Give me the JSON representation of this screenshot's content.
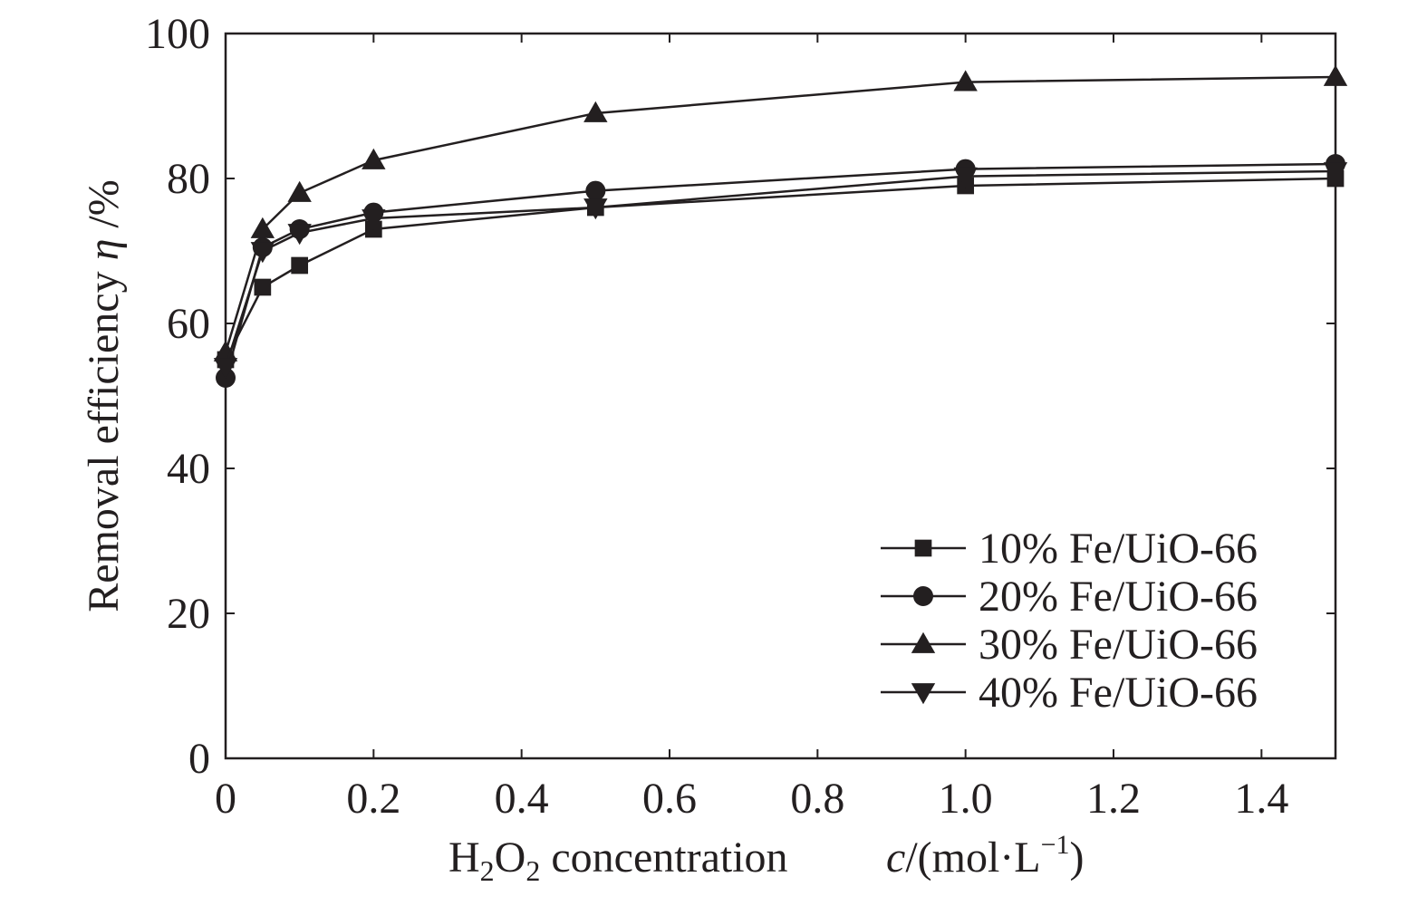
{
  "chart_data": {
    "type": "line",
    "x": [
      0,
      0.05,
      0.1,
      0.2,
      0.5,
      1.0,
      1.5
    ],
    "xlim": [
      0,
      1.5
    ],
    "ylim": [
      0,
      100
    ],
    "x_ticks": [
      "0",
      "0.2",
      "0.4",
      "0.6",
      "0.8",
      "1.0",
      "1.2",
      "1.4"
    ],
    "y_ticks": [
      "0",
      "20",
      "40",
      "60",
      "80",
      "100"
    ],
    "xlabel": {
      "prefix": "H",
      "sub1": "2",
      "mid": "O",
      "sub2": "2",
      "rest": " concentration",
      "var": "c",
      "unit_open": "/(mol·L",
      "sup": "−1",
      "unit_close": ")"
    },
    "ylabel": {
      "text": "Removal efficiency ",
      "var": "η",
      "unit": " /%"
    },
    "legend_position": "lower-right",
    "grid": false,
    "series": [
      {
        "name": "10% Fe/UiO-66",
        "marker": "square",
        "values": [
          55,
          65,
          68,
          73,
          76,
          79,
          80
        ]
      },
      {
        "name": "20% Fe/UiO-66",
        "marker": "circle",
        "values": [
          52.5,
          70.5,
          73,
          75.3,
          78.3,
          81.3,
          82
        ]
      },
      {
        "name": "30% Fe/UiO-66",
        "marker": "triangle-up",
        "values": [
          56,
          73,
          78,
          82.5,
          89,
          93.3,
          94
        ]
      },
      {
        "name": "40% Fe/UiO-66",
        "marker": "triangle-down",
        "values": [
          54,
          70,
          72.5,
          74.5,
          76,
          80.3,
          81
        ]
      }
    ]
  }
}
